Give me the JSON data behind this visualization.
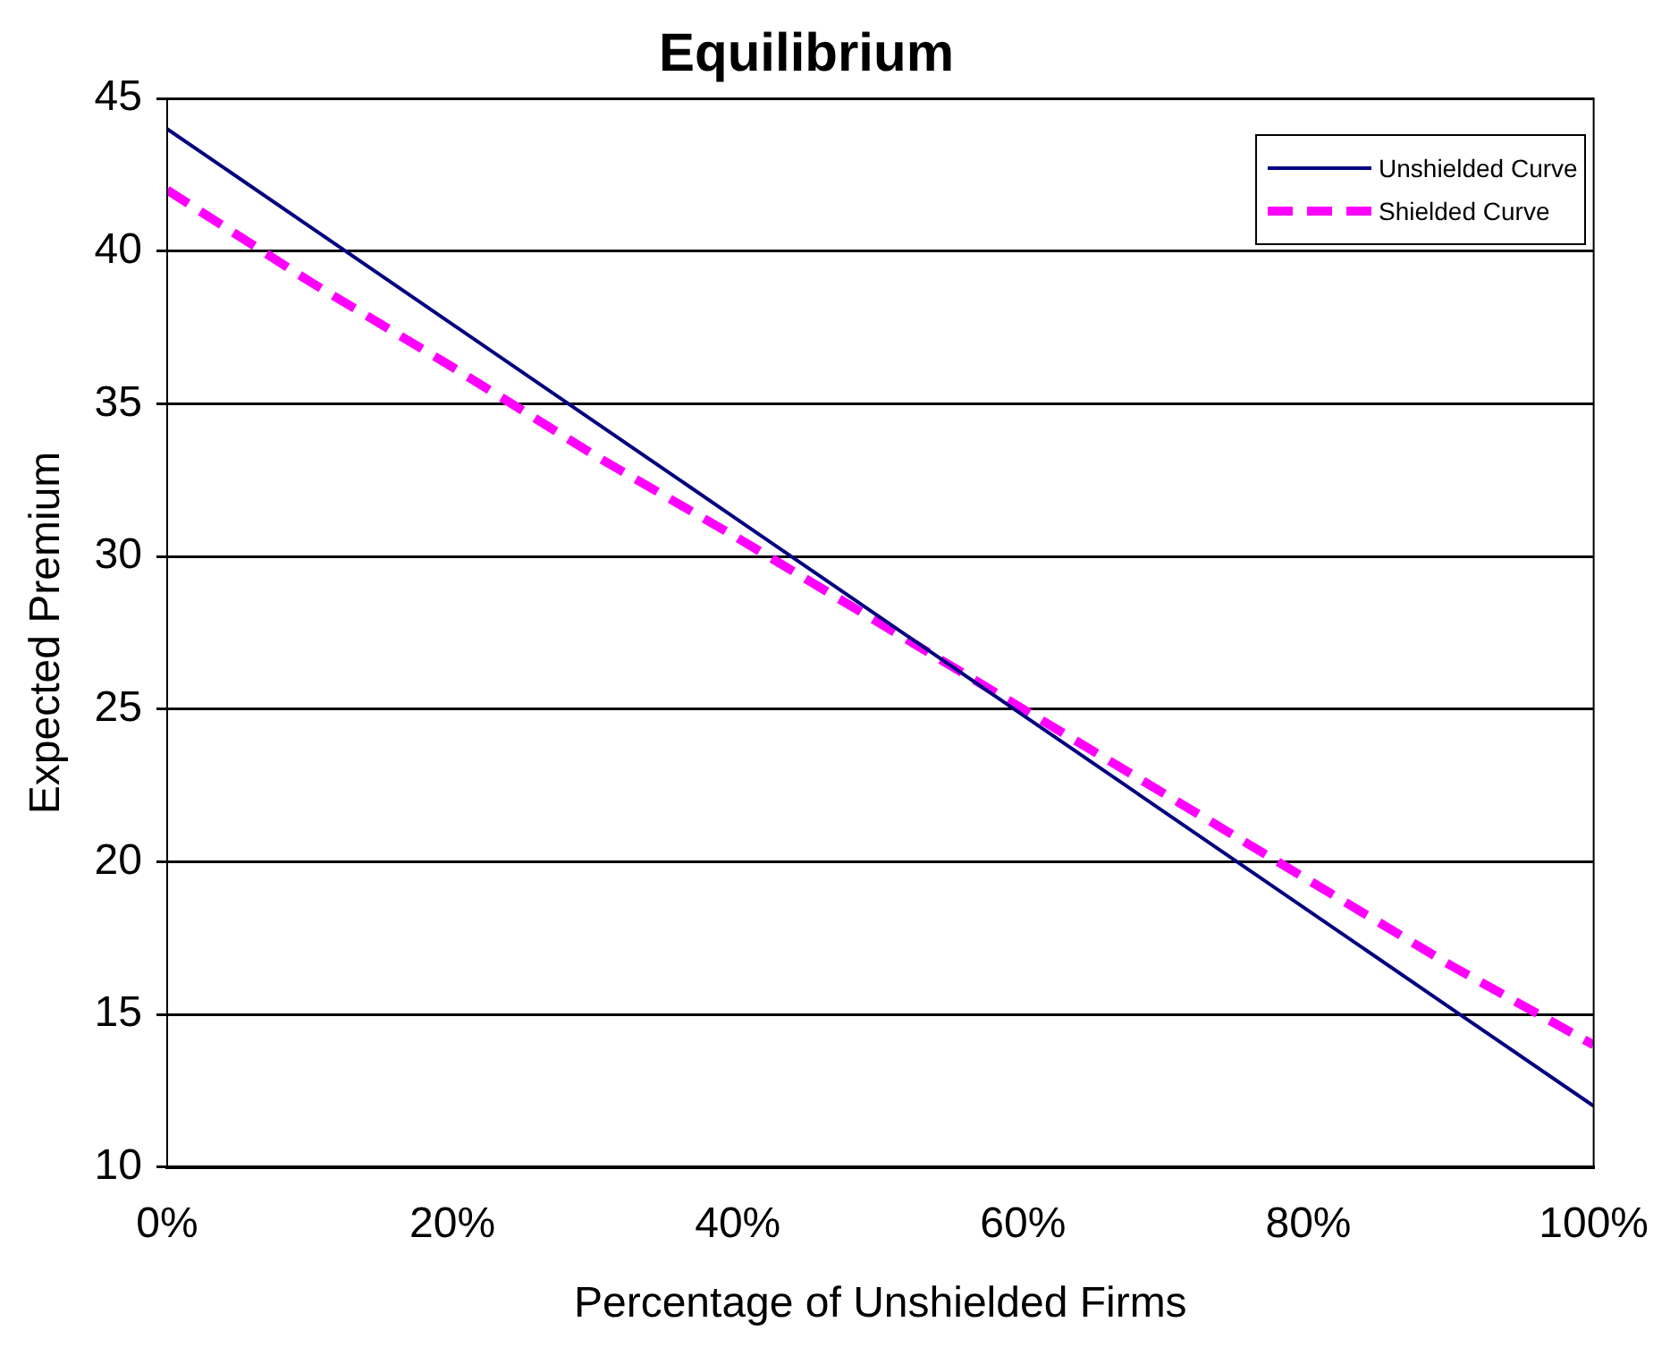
{
  "chart_data": {
    "type": "line",
    "title": "Equilibrium",
    "xlabel": "Percentage of Unshielded Firms",
    "ylabel": "Expected Premium",
    "x": [
      0,
      10,
      20,
      30,
      40,
      50,
      60,
      70,
      80,
      90,
      100
    ],
    "series": [
      {
        "name": "Unshielded Curve",
        "color": "#000080",
        "line_style": "solid",
        "values": [
          44,
          40.8,
          37.6,
          34.4,
          31.2,
          28,
          24.8,
          21.6,
          18.4,
          15.2,
          12
        ]
      },
      {
        "name": "Shielded Curve",
        "color": "#ff00ff",
        "line_style": "dashed",
        "values": [
          42,
          39,
          36.2,
          33.3,
          30.6,
          27.8,
          25,
          22.2,
          19.4,
          16.6,
          14
        ]
      }
    ],
    "xlim": [
      0,
      100
    ],
    "xticks": [
      {
        "value": 0,
        "label": "0%"
      },
      {
        "value": 20,
        "label": "20%"
      },
      {
        "value": 40,
        "label": "40%"
      },
      {
        "value": 60,
        "label": "60%"
      },
      {
        "value": 80,
        "label": "80%"
      },
      {
        "value": 100,
        "label": "100%"
      }
    ],
    "ylim": [
      10,
      45
    ],
    "yticks": [
      10,
      15,
      20,
      25,
      30,
      35,
      40,
      45
    ],
    "grid": "y",
    "legend": "top right",
    "marker": "none"
  }
}
